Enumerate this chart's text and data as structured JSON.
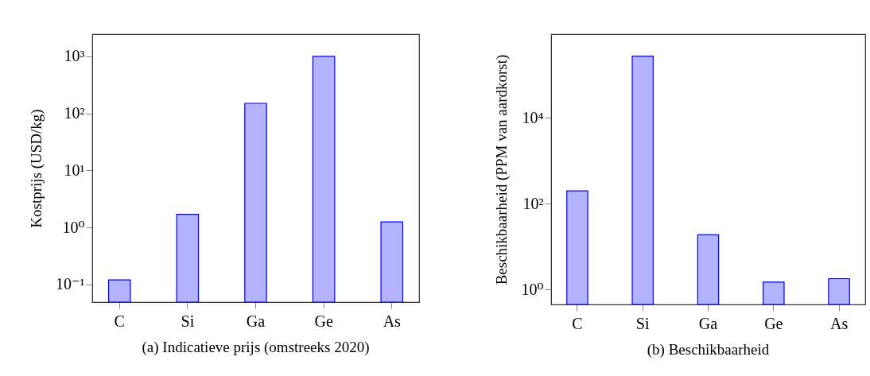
{
  "chart_data": [
    {
      "type": "bar",
      "title": "(a) Indicatieve prijs (omstreeks 2020)",
      "ylabel": "Kostprijs (USD/kg)",
      "categories": [
        "C",
        "Si",
        "Ga",
        "Ge",
        "As"
      ],
      "values": [
        0.12,
        1.7,
        150,
        1000,
        1.25
      ],
      "color": "#b3b3ff",
      "log": true,
      "ylim": [
        0.049,
        2450
      ],
      "yticks": [
        {
          "value": 0.1,
          "label": "10⁻¹"
        },
        {
          "value": 1,
          "label": "10⁰"
        },
        {
          "value": 10,
          "label": "10¹"
        },
        {
          "value": 100,
          "label": "10²"
        },
        {
          "value": 1000,
          "label": "10³"
        }
      ]
    },
    {
      "type": "bar",
      "title": "(b) Beschikbaarheid",
      "ylabel": "Beschikbaarheid (PPM van aardkorst)",
      "categories": [
        "C",
        "Si",
        "Ga",
        "Ge",
        "As"
      ],
      "values": [
        200,
        277000,
        19,
        1.5,
        1.8
      ],
      "color": "#b3b3ff",
      "log": true,
      "ylim": [
        0.45,
        900000
      ],
      "yticks": [
        {
          "value": 1,
          "label": "10⁰"
        },
        {
          "value": 100,
          "label": "10²"
        },
        {
          "value": 10000,
          "label": "10⁴"
        }
      ]
    }
  ]
}
